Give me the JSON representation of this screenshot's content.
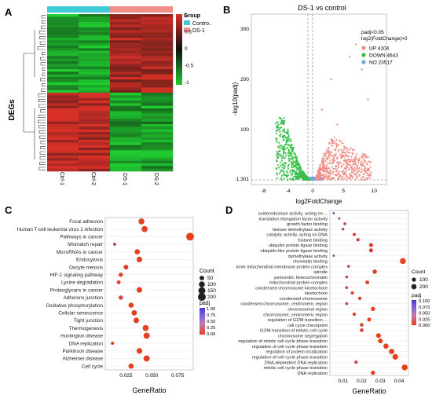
{
  "chart_data": [
    {
      "panel": "A",
      "type": "heatmap",
      "ylabel": "DEGs",
      "columns": [
        "Ctrl-1",
        "Ctrl-2",
        "DS-1",
        "DS-2"
      ],
      "group_legend": {
        "title": "Group",
        "items": [
          {
            "label": "Contro..",
            "color": "#3ecbd6"
          },
          {
            "label": "DS-1",
            "color": "#f08f88"
          }
        ]
      },
      "colorbar_ticks": [
        "1",
        "0.5",
        "0",
        "-0.5",
        "-1"
      ],
      "colors": {
        "high": "#d73027",
        "mid": "#111111",
        "low": "#1fcc2f"
      }
    },
    {
      "panel": "B",
      "type": "scatter",
      "title": "DS-1 vs control",
      "xlabel": "log2FoldChange",
      "ylabel": "-log10(padj)",
      "xticks": [
        "-8",
        "-4",
        "0",
        "5",
        "10"
      ],
      "yticks": [
        "1.301",
        "100",
        "200",
        "300"
      ],
      "legend_header": [
        "padj<0.05",
        "log2|FoldChange|>0"
      ],
      "series": [
        {
          "name": "UP 4104",
          "color": "#f08f88"
        },
        {
          "name": "DOWN 4643",
          "color": "#3dbf4c"
        },
        {
          "name": "NO 23517",
          "color": "#6fa4e6"
        }
      ]
    },
    {
      "panel": "C",
      "type": "scatter",
      "xlabel": "GeneRatio",
      "xticks": [
        "0.025",
        "0.050",
        "0.075"
      ],
      "xlim": [
        0.005,
        0.09
      ],
      "categories": [
        "Focal adhesion",
        "Human T-cell leukemia virus 1 infection",
        "Pathways in cancer",
        "Mismatch repair",
        "MicroRNAs in cancer",
        "Endocytosis",
        "Oocyte meiosis",
        "HIF-1 signaling pathway",
        "Lysine degradation",
        "Proteoglycans in cancer",
        "Adherens junction",
        "Oxidative phosphorylation",
        "Cellular senescence",
        "Tight junction",
        "Thermogenesis",
        "Huntington disease",
        "DNA replication",
        "Parkinson disease",
        "Alzheimer disease",
        "Cell cycle"
      ],
      "x": [
        0.04,
        0.043,
        0.087,
        0.014,
        0.036,
        0.038,
        0.025,
        0.02,
        0.018,
        0.038,
        0.02,
        0.03,
        0.033,
        0.035,
        0.044,
        0.045,
        0.012,
        0.038,
        0.045,
        0.03
      ],
      "count": [
        100,
        105,
        195,
        15,
        72,
        88,
        55,
        40,
        30,
        85,
        42,
        70,
        78,
        82,
        105,
        110,
        18,
        90,
        112,
        72
      ],
      "padj": [
        0.05,
        0.03,
        0.01,
        0.2,
        0.04,
        0.05,
        0.06,
        0.05,
        0.07,
        0.03,
        0.08,
        0.03,
        0.04,
        0.03,
        0.02,
        0.03,
        0.09,
        0.02,
        0.03,
        0.04
      ],
      "size_legend": {
        "title": "Count",
        "items": [
          "50",
          "100",
          "150",
          "200"
        ]
      },
      "color_legend": {
        "title": "padj",
        "ticks": [
          "1.00",
          "0.75",
          "0.50",
          "0.25",
          "0.00"
        ]
      }
    },
    {
      "panel": "D",
      "type": "scatter",
      "xlabel": "GeneRatio",
      "xticks": [
        "0.01",
        "0.02",
        "0.03",
        "0.04"
      ],
      "xlim": [
        0.003,
        0.045
      ],
      "categories": [
        "oxidoreductase activity, acting on ...",
        "translation elongation factor activity",
        "growth factor binding",
        "histone demethylase activity",
        "catalytic activity, acting on DNA",
        "histone binding",
        "ubiquitin protein ligase binding",
        "ubiquitin-like protein ligase binding",
        "demethylase activity",
        "chromatin binding",
        "inner mitochondrial membrane protein complex",
        "spindle",
        "pericentric heterochromatin",
        "mitochondrial protein complex",
        "condensed chromosome kinetochore",
        "kinetochore",
        "condensed chromosome",
        "condensed chromosome, centromeric region",
        "chromosomal region",
        "chromosome, centromeric region",
        "regulation of G2/M transition ...",
        "cell cycle checkpoint",
        "G2/M transition of mitotic cell cycle",
        "chromosome segregation",
        "regulation of mitotic cell cycle phase transition",
        "regulation of cell cycle phase transition",
        "regulation of protein localization",
        "regulation of cell cycle phase transition",
        "DNA-dependent DNA replication",
        "mitotic cell cycle phase transition",
        "DNA replication"
      ],
      "x": [
        0.005,
        0.008,
        0.011,
        0.01,
        0.016,
        0.018,
        0.025,
        0.025,
        0.005,
        0.042,
        0.013,
        0.027,
        0.012,
        0.023,
        0.012,
        0.015,
        0.019,
        0.012,
        0.026,
        0.016,
        0.024,
        0.02,
        0.02,
        0.029,
        0.03,
        0.033,
        0.036,
        0.038,
        0.017,
        0.043,
        0.026
      ],
      "count": [
        8,
        12,
        28,
        20,
        42,
        55,
        95,
        95,
        10,
        270,
        30,
        120,
        25,
        80,
        30,
        45,
        60,
        32,
        110,
        48,
        88,
        66,
        68,
        150,
        160,
        190,
        210,
        240,
        50,
        280,
        110
      ],
      "padj": [
        0.1,
        0.05,
        0.03,
        0.05,
        0.02,
        0.02,
        0.01,
        0.01,
        0.08,
        0.0,
        0.03,
        0.01,
        0.04,
        0.01,
        0.02,
        0.01,
        0.01,
        0.02,
        0.0,
        0.01,
        0.0,
        0.01,
        0.01,
        0.0,
        0.0,
        0.0,
        0.0,
        0.0,
        0.02,
        0.0,
        0.0
      ],
      "size_legend": {
        "title": "Count",
        "items": [
          "100",
          "200"
        ]
      },
      "color_legend": {
        "title": "padj",
        "ticks": [
          "0.100",
          "0.075",
          "0.050",
          "0.025",
          "0.000"
        ]
      }
    }
  ],
  "panel_labels": [
    "A",
    "B",
    "C",
    "D"
  ]
}
